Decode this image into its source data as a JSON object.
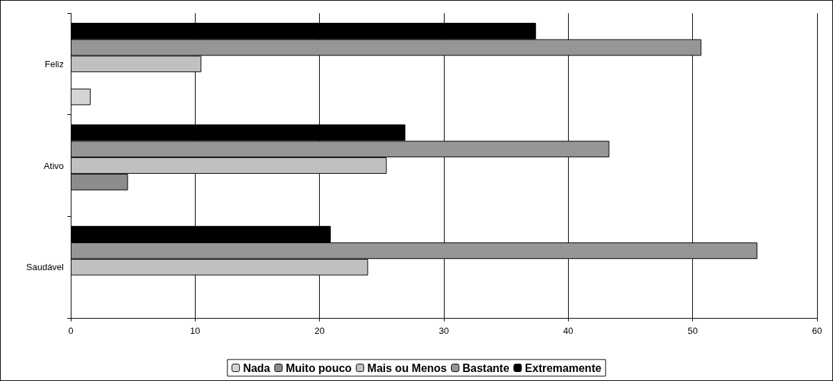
{
  "chart_data": {
    "type": "bar",
    "orientation": "horizontal",
    "categories": [
      "Feliz",
      "Ativo",
      "Saudável"
    ],
    "series": [
      {
        "name": "Nada",
        "color": "#d4d4d4",
        "values": [
          1.6,
          null,
          null
        ]
      },
      {
        "name": "Muito pouco",
        "color": "#8c8c8c",
        "values": [
          null,
          4.6,
          null
        ]
      },
      {
        "name": "Mais ou Menos",
        "color": "#c0c0c0",
        "values": [
          10.5,
          25.4,
          23.9
        ]
      },
      {
        "name": "Bastante",
        "color": "#969696",
        "values": [
          50.7,
          43.3,
          55.2
        ]
      },
      {
        "name": "Extremamente",
        "color": "#000000",
        "values": [
          37.4,
          26.9,
          20.9
        ]
      }
    ],
    "xlim": [
      0,
      60
    ],
    "xticks": [
      0,
      10,
      20,
      30,
      40,
      50,
      60
    ],
    "grid": "x",
    "legend": "bottom"
  }
}
